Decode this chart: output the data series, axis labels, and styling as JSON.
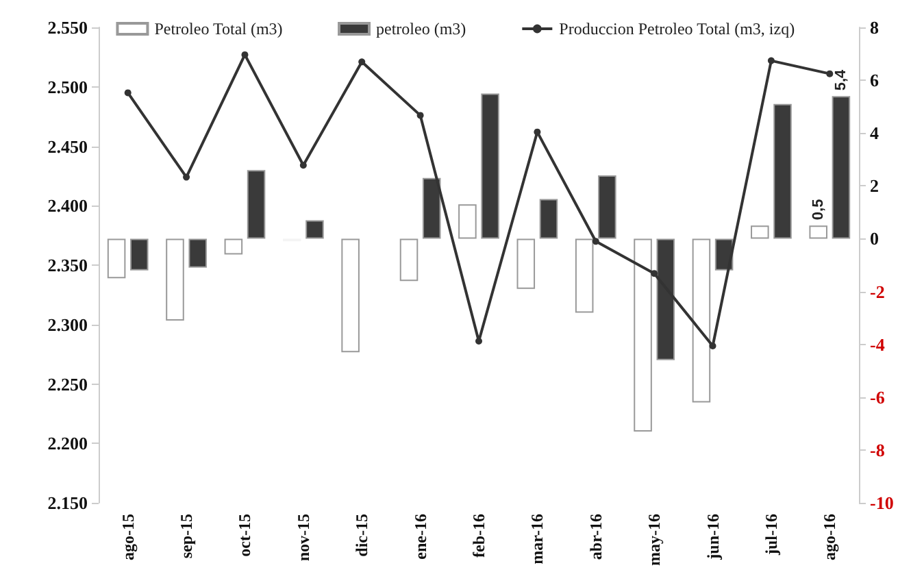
{
  "chart_data": {
    "type": "bar",
    "categories": [
      "ago-15",
      "sep-15",
      "oct-15",
      "nov-15",
      "dic-15",
      "ene-16",
      "feb-16",
      "mar-16",
      "abr-16",
      "may-16",
      "jun-16",
      "jul-16",
      "ago-16"
    ],
    "series": [
      {
        "name": "Petroleo Total (m3)",
        "axis": "y2",
        "color": "#ffffff",
        "values": [
          -1.5,
          -3.1,
          -0.6,
          -0.1,
          -4.3,
          -1.6,
          1.3,
          -1.9,
          -2.8,
          -7.3,
          -6.2,
          0.5,
          0.5
        ],
        "value_labels": [
          null,
          null,
          null,
          null,
          null,
          null,
          null,
          null,
          null,
          null,
          null,
          null,
          "0,5"
        ]
      },
      {
        "name": "petroleo (m3)",
        "axis": "y2",
        "color": "#3a3a3a",
        "values": [
          -1.2,
          -1.1,
          2.6,
          0.7,
          0,
          2.3,
          5.5,
          1.5,
          2.4,
          -4.6,
          -1.2,
          5.1,
          5.4
        ],
        "value_labels": [
          null,
          null,
          null,
          null,
          null,
          null,
          null,
          null,
          null,
          null,
          null,
          null,
          "5,4"
        ]
      },
      {
        "name": "Produccion Petroleo Total (m3, izq)",
        "type": "line",
        "axis": "y",
        "color": "#333333",
        "marker": "circle",
        "values": [
          2495,
          2424,
          2527,
          2434,
          2521,
          2476,
          2286,
          2462,
          2370,
          2343,
          2282,
          2522,
          2511
        ]
      }
    ],
    "ylim": [
      2150,
      2550
    ],
    "yticks": [
      {
        "value": 2150,
        "label": "2.150"
      },
      {
        "value": 2200,
        "label": "2.200"
      },
      {
        "value": 2250,
        "label": "2.250"
      },
      {
        "value": 2300,
        "label": "2.300"
      },
      {
        "value": 2350,
        "label": "2.350"
      },
      {
        "value": 2400,
        "label": "2.400"
      },
      {
        "value": 2450,
        "label": "2.450"
      },
      {
        "value": 2500,
        "label": "2.500"
      },
      {
        "value": 2550,
        "label": "2.550"
      }
    ],
    "y2lim": [
      -10,
      8
    ],
    "y2ticks": [
      -10,
      -8,
      -6,
      -4,
      -2,
      0,
      2,
      4,
      6,
      8
    ],
    "legend": "top",
    "grid": false
  }
}
